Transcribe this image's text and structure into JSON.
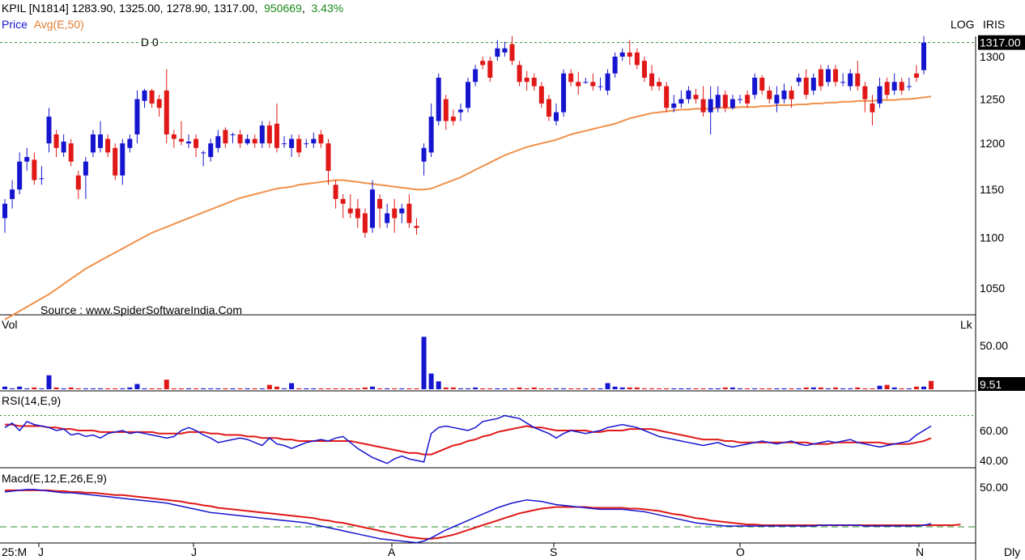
{
  "header": {
    "symbol": "KPIL [N1814]",
    "open": "1283.90",
    "high": "1325.00",
    "low": "1278.90",
    "close": "1317.00",
    "volume": "950669",
    "change_pct": "3.43%",
    "price_label": "Price",
    "avg_label": "Avg(E,50)",
    "log_label": "LOG",
    "iris_label": "IRIS",
    "d_marker": "D 0",
    "source": "Source : www.SpiderSoftwareIndia.Com"
  },
  "colors": {
    "up": "#1515d0",
    "down": "#e01818",
    "ema": "#f0904a",
    "rsi": "#1515d0",
    "rsi_signal": "#e01818",
    "macd": "#1515d0",
    "macd_signal": "#e01818",
    "header_change": "#1a8a1a",
    "avg_text": "#e07a30",
    "price_text": "#1515d0"
  },
  "chart_data": {
    "type": "candlestick",
    "title": "KPIL [N1814]",
    "price_axis": {
      "ticks": [
        "1300",
        "1250",
        "1200",
        "1150",
        "1100",
        "1050"
      ],
      "current": "1317.00",
      "scale": "log"
    },
    "x_axis": {
      "ticks": [
        "25:M",
        "J",
        "J",
        "A",
        "S",
        "O",
        "N"
      ],
      "timeframe": "Dly"
    },
    "candles": [
      [
        1120,
        1135,
        1105,
        1140
      ],
      [
        1140,
        1150,
        1130,
        1160
      ],
      [
        1150,
        1180,
        1145,
        1190
      ],
      [
        1180,
        1185,
        1170,
        1195
      ],
      [
        1182,
        1160,
        1155,
        1190
      ],
      [
        1162,
        1162,
        1155,
        1175
      ],
      [
        1200,
        1230,
        1190,
        1240
      ],
      [
        1210,
        1195,
        1185,
        1215
      ],
      [
        1190,
        1202,
        1185,
        1210
      ],
      [
        1200,
        1180,
        1175,
        1205
      ],
      [
        1165,
        1150,
        1140,
        1170
      ],
      [
        1165,
        1180,
        1140,
        1185
      ],
      [
        1190,
        1210,
        1185,
        1215
      ],
      [
        1195,
        1210,
        1190,
        1225
      ],
      [
        1205,
        1190,
        1185,
        1210
      ],
      [
        1195,
        1165,
        1160,
        1200
      ],
      [
        1165,
        1200,
        1155,
        1205
      ],
      [
        1195,
        1205,
        1190,
        1210
      ],
      [
        1210,
        1250,
        1200,
        1260
      ],
      [
        1248,
        1260,
        1240,
        1262
      ],
      [
        1260,
        1245,
        1240,
        1262
      ],
      [
        1250,
        1240,
        1230,
        1255
      ],
      [
        1260,
        1210,
        1200,
        1285
      ],
      [
        1210,
        1205,
        1195,
        1215
      ],
      [
        1205,
        1202,
        1198,
        1225
      ],
      [
        1200,
        1202,
        1195,
        1210
      ],
      [
        1205,
        1195,
        1185,
        1210
      ],
      [
        1190,
        1190,
        1175,
        1192
      ],
      [
        1185,
        1200,
        1180,
        1205
      ],
      [
        1195,
        1208,
        1190,
        1215
      ],
      [
        1215,
        1200,
        1195,
        1218
      ],
      [
        1210,
        1210,
        1200,
        1212
      ],
      [
        1210,
        1200,
        1195,
        1215
      ],
      [
        1200,
        1205,
        1198,
        1210
      ],
      [
        1205,
        1200,
        1195,
        1210
      ],
      [
        1200,
        1220,
        1195,
        1225
      ],
      [
        1220,
        1200,
        1195,
        1225
      ],
      [
        1222,
        1195,
        1190,
        1245
      ],
      [
        1200,
        1200,
        1195,
        1208
      ],
      [
        1195,
        1205,
        1185,
        1210
      ],
      [
        1205,
        1190,
        1185,
        1210
      ],
      [
        1200,
        1200,
        1195,
        1205
      ],
      [
        1200,
        1205,
        1195,
        1212
      ],
      [
        1210,
        1200,
        1195,
        1215
      ],
      [
        1200,
        1170,
        1155,
        1205
      ],
      [
        1155,
        1140,
        1130,
        1160
      ],
      [
        1140,
        1135,
        1120,
        1145
      ],
      [
        1130,
        1125,
        1120,
        1145
      ],
      [
        1130,
        1120,
        1110,
        1140
      ],
      [
        1125,
        1105,
        1100,
        1130
      ],
      [
        1110,
        1150,
        1105,
        1160
      ],
      [
        1140,
        1130,
        1110,
        1145
      ],
      [
        1115,
        1125,
        1110,
        1135
      ],
      [
        1130,
        1120,
        1105,
        1140
      ],
      [
        1125,
        1130,
        1115,
        1135
      ],
      [
        1135,
        1115,
        1110,
        1145
      ],
      [
        1112,
        1110,
        1103,
        1120
      ],
      [
        1180,
        1195,
        1165,
        1200
      ],
      [
        1190,
        1230,
        1185,
        1245
      ],
      [
        1225,
        1275,
        1220,
        1280
      ],
      [
        1250,
        1225,
        1215,
        1255
      ],
      [
        1230,
        1225,
        1220,
        1238
      ],
      [
        1235,
        1238,
        1225,
        1245
      ],
      [
        1240,
        1270,
        1235,
        1275
      ],
      [
        1270,
        1285,
        1265,
        1290
      ],
      [
        1295,
        1290,
        1285,
        1300
      ],
      [
        1295,
        1275,
        1270,
        1300
      ],
      [
        1300,
        1310,
        1295,
        1320
      ],
      [
        1305,
        1310,
        1300,
        1318
      ],
      [
        1315,
        1295,
        1290,
        1325
      ],
      [
        1290,
        1270,
        1265,
        1295
      ],
      [
        1275,
        1270,
        1260,
        1283
      ],
      [
        1275,
        1265,
        1260,
        1280
      ],
      [
        1265,
        1245,
        1240,
        1270
      ],
      [
        1250,
        1230,
        1225,
        1255
      ],
      [
        1225,
        1235,
        1220,
        1245
      ],
      [
        1235,
        1280,
        1230,
        1285
      ],
      [
        1280,
        1270,
        1265,
        1285
      ],
      [
        1270,
        1265,
        1255,
        1282
      ],
      [
        1270,
        1270,
        1268,
        1275
      ],
      [
        1270,
        1265,
        1260,
        1280
      ],
      [
        1265,
        1265,
        1260,
        1275
      ],
      [
        1260,
        1280,
        1255,
        1285
      ],
      [
        1280,
        1300,
        1275,
        1305
      ],
      [
        1300,
        1305,
        1295,
        1310
      ],
      [
        1305,
        1300,
        1290,
        1320
      ],
      [
        1305,
        1290,
        1285,
        1310
      ],
      [
        1295,
        1275,
        1270,
        1300
      ],
      [
        1280,
        1265,
        1260,
        1290
      ],
      [
        1270,
        1265,
        1260,
        1275
      ],
      [
        1265,
        1240,
        1235,
        1270
      ],
      [
        1240,
        1245,
        1235,
        1255
      ],
      [
        1245,
        1250,
        1240,
        1260
      ],
      [
        1250,
        1260,
        1245,
        1265
      ],
      [
        1255,
        1250,
        1245,
        1262
      ],
      [
        1250,
        1235,
        1230,
        1265
      ],
      [
        1235,
        1250,
        1210,
        1265
      ],
      [
        1240,
        1255,
        1235,
        1265
      ],
      [
        1255,
        1240,
        1235,
        1260
      ],
      [
        1240,
        1250,
        1238,
        1255
      ],
      [
        1250,
        1250,
        1245,
        1255
      ],
      [
        1255,
        1245,
        1240,
        1260
      ],
      [
        1255,
        1275,
        1250,
        1280
      ],
      [
        1275,
        1260,
        1255,
        1278
      ],
      [
        1260,
        1250,
        1245,
        1265
      ],
      [
        1245,
        1255,
        1235,
        1265
      ],
      [
        1250,
        1260,
        1245,
        1268
      ],
      [
        1260,
        1250,
        1240,
        1265
      ],
      [
        1270,
        1275,
        1265,
        1280
      ],
      [
        1275,
        1255,
        1250,
        1285
      ],
      [
        1260,
        1275,
        1255,
        1280
      ],
      [
        1285,
        1265,
        1260,
        1290
      ],
      [
        1270,
        1285,
        1265,
        1290
      ],
      [
        1285,
        1270,
        1265,
        1290
      ],
      [
        1270,
        1270,
        1265,
        1280
      ],
      [
        1265,
        1280,
        1260,
        1285
      ],
      [
        1280,
        1265,
        1260,
        1295
      ],
      [
        1265,
        1250,
        1235,
        1270
      ],
      [
        1245,
        1235,
        1220,
        1255
      ],
      [
        1245,
        1265,
        1240,
        1275
      ],
      [
        1270,
        1255,
        1250,
        1275
      ],
      [
        1260,
        1270,
        1255,
        1280
      ],
      [
        1270,
        1260,
        1255,
        1275
      ],
      [
        1265,
        1265,
        1260,
        1275
      ],
      [
        1280,
        1275,
        1270,
        1290
      ],
      [
        1283.9,
        1317,
        1278.9,
        1325
      ]
    ],
    "ema50": [
      1020,
      1024,
      1028,
      1032,
      1036,
      1040,
      1044,
      1049,
      1054,
      1059,
      1064,
      1069,
      1073,
      1077,
      1081,
      1085,
      1089,
      1093,
      1097,
      1101,
      1105,
      1108,
      1111,
      1114,
      1117,
      1120,
      1123,
      1126,
      1129,
      1132,
      1135,
      1138,
      1141,
      1143,
      1145,
      1147,
      1149,
      1151,
      1152,
      1153,
      1155,
      1156,
      1157,
      1158,
      1159,
      1160,
      1160,
      1159,
      1158,
      1157,
      1156,
      1155,
      1154,
      1153,
      1152,
      1151,
      1150,
      1150,
      1151,
      1154,
      1157,
      1160,
      1163,
      1167,
      1171,
      1175,
      1179,
      1183,
      1187,
      1190,
      1193,
      1196,
      1198,
      1200,
      1202,
      1204,
      1207,
      1210,
      1212,
      1214,
      1216,
      1218,
      1220,
      1222,
      1225,
      1228,
      1230,
      1232,
      1234,
      1235,
      1236,
      1237,
      1238,
      1238,
      1239,
      1239,
      1239,
      1240,
      1240,
      1240,
      1241,
      1241,
      1241,
      1242,
      1242,
      1243,
      1243,
      1243,
      1244,
      1244,
      1245,
      1245,
      1246,
      1246,
      1247,
      1247,
      1248,
      1248,
      1248,
      1249,
      1249,
      1249,
      1250,
      1250,
      1251,
      1252,
      1253
    ]
  },
  "volume_pane": {
    "label": "Vol",
    "unit": "Lk",
    "ticks": [
      "50.00"
    ],
    "current": "9.51",
    "values": [
      3,
      1,
      3,
      1,
      2,
      1,
      16,
      2,
      1,
      2,
      1,
      1,
      1,
      1,
      1,
      1,
      1,
      2,
      6,
      1,
      1,
      1,
      11,
      1,
      1,
      1,
      1,
      1,
      1,
      1,
      1,
      1,
      1,
      1,
      1,
      1,
      5,
      3,
      1,
      7,
      1,
      1,
      1,
      1,
      1,
      1,
      1,
      1,
      1,
      2,
      3,
      1,
      1,
      1,
      1,
      1,
      1,
      60,
      18,
      9,
      2,
      2,
      1,
      1,
      2,
      1,
      1,
      1,
      1,
      1,
      2,
      1,
      2,
      1,
      1,
      1,
      1,
      1,
      1,
      1,
      1,
      1,
      7,
      3,
      2,
      2,
      2,
      1,
      1,
      1,
      1,
      1,
      1,
      1,
      1,
      1,
      1,
      1,
      2,
      2,
      1,
      1,
      1,
      1,
      1,
      1,
      1,
      1,
      1,
      2,
      2,
      2,
      1,
      2,
      1,
      1,
      2,
      1,
      1,
      4,
      5,
      2,
      1,
      1,
      3,
      3,
      9.51
    ]
  },
  "rsi_pane": {
    "label": "RSI(14,E,9)",
    "ticks": [
      "60.00",
      "40.00"
    ],
    "rsi": [
      62,
      65,
      60,
      66,
      64,
      63,
      62,
      60,
      61,
      57,
      58,
      56,
      57,
      55,
      58,
      59,
      60,
      58,
      59,
      58,
      57,
      56,
      55,
      56,
      60,
      62,
      60,
      57,
      55,
      52,
      53,
      54,
      55,
      54,
      52,
      50,
      55,
      51,
      50,
      48,
      50,
      52,
      53,
      54,
      53,
      55,
      56,
      52,
      48,
      45,
      42,
      40,
      38,
      41,
      43,
      41,
      40,
      39,
      58,
      62,
      63,
      62,
      61,
      60,
      62,
      66,
      67,
      68,
      70,
      69,
      68,
      65,
      62,
      60,
      58,
      55,
      58,
      60,
      59,
      58,
      59,
      60,
      62,
      63,
      64,
      63,
      62,
      60,
      58,
      56,
      55,
      54,
      53,
      52,
      51,
      50,
      51,
      52,
      50,
      49,
      50,
      51,
      52,
      53,
      52,
      51,
      52,
      53,
      51,
      50,
      51,
      52,
      53,
      52,
      53,
      54,
      52,
      51,
      50,
      49,
      50,
      51,
      52,
      53,
      57,
      60,
      63
    ],
    "signal": [
      64,
      64,
      63,
      63,
      63,
      63,
      62,
      62,
      61,
      61,
      60,
      60,
      60,
      59,
      59,
      59,
      59,
      59,
      59,
      59,
      59,
      58,
      58,
      58,
      58,
      59,
      59,
      59,
      58,
      58,
      57,
      57,
      57,
      56,
      56,
      55,
      55,
      55,
      54,
      54,
      53,
      53,
      53,
      53,
      53,
      53,
      53,
      53,
      52,
      51,
      50,
      49,
      48,
      47,
      46,
      45,
      45,
      44,
      44,
      46,
      48,
      50,
      51,
      53,
      54,
      56,
      57,
      59,
      60,
      61,
      62,
      63,
      62,
      62,
      61,
      60,
      60,
      60,
      60,
      60,
      59,
      59,
      60,
      60,
      60,
      61,
      61,
      61,
      61,
      60,
      59,
      58,
      57,
      56,
      55,
      54,
      54,
      54,
      53,
      53,
      52,
      52,
      52,
      52,
      52,
      52,
      52,
      52,
      52,
      52,
      51,
      51,
      51,
      52,
      52,
      52,
      52,
      52,
      52,
      52,
      51,
      51,
      51,
      51,
      52,
      53,
      55
    ]
  },
  "macd_pane": {
    "label": "Macd(E,12,E,26,E,9)",
    "ticks": [
      "50.00"
    ],
    "macd": [
      44,
      45,
      46,
      47,
      47,
      46,
      45,
      44,
      43,
      43,
      42,
      41,
      40,
      39,
      38,
      37,
      36,
      35,
      34,
      33,
      32,
      31,
      30,
      28,
      26,
      24,
      22,
      20,
      18,
      17,
      16,
      15,
      14,
      13,
      12,
      11,
      10,
      9,
      8,
      7,
      6,
      5,
      3,
      1,
      -1,
      -3,
      -5,
      -7,
      -9,
      -11,
      -13,
      -15,
      -16,
      -17,
      -18,
      -19,
      -20,
      -18,
      -14,
      -9,
      -4,
      0,
      4,
      8,
      12,
      16,
      20,
      24,
      27,
      30,
      32,
      34,
      33,
      32,
      30,
      28,
      27,
      26,
      25,
      24,
      23,
      22,
      22,
      22,
      22,
      21,
      20,
      19,
      17,
      15,
      13,
      11,
      9,
      7,
      5,
      4,
      3,
      2,
      1,
      1,
      1,
      1,
      1,
      1,
      1,
      1,
      1,
      1,
      1,
      1,
      1,
      2,
      2,
      2,
      2,
      2,
      2,
      1,
      1,
      1,
      1,
      1,
      1,
      1,
      1,
      2,
      4
    ],
    "signal": [
      46,
      46,
      46,
      46,
      46,
      46,
      46,
      45,
      45,
      44,
      44,
      43,
      43,
      42,
      41,
      40,
      40,
      39,
      38,
      37,
      36,
      35,
      34,
      33,
      32,
      30,
      29,
      27,
      26,
      24,
      23,
      22,
      21,
      20,
      19,
      18,
      17,
      16,
      15,
      14,
      13,
      12,
      11,
      9,
      8,
      6,
      5,
      3,
      1,
      -1,
      -3,
      -5,
      -7,
      -9,
      -11,
      -13,
      -14,
      -15,
      -15,
      -14,
      -12,
      -10,
      -7,
      -4,
      -1,
      2,
      5,
      8,
      11,
      14,
      17,
      19,
      21,
      23,
      24,
      25,
      25,
      25,
      25,
      25,
      24,
      24,
      24,
      24,
      24,
      23,
      23,
      22,
      21,
      20,
      18,
      16,
      15,
      13,
      11,
      10,
      8,
      7,
      6,
      5,
      4,
      3,
      3,
      2,
      2,
      2,
      2,
      2,
      2,
      2,
      2,
      2,
      2,
      2,
      2,
      2,
      2,
      2,
      2,
      2,
      2,
      2,
      2,
      2,
      2,
      2,
      2,
      2,
      2,
      2,
      3
    ]
  }
}
